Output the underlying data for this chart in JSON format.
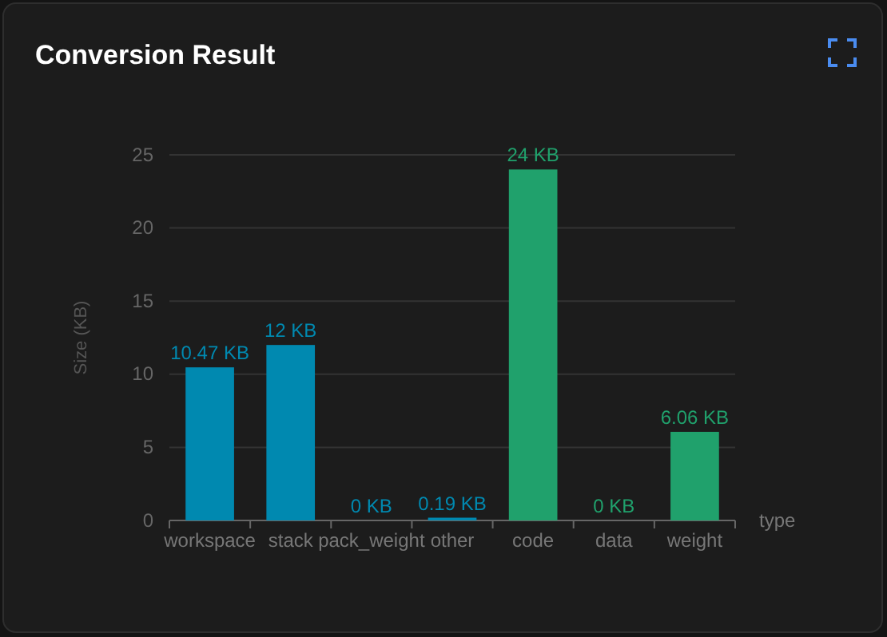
{
  "chart_data": {
    "type": "bar",
    "title": "Conversion Result",
    "xlabel": "type",
    "ylabel": "Size (KB)",
    "categories": [
      "workspace",
      "stack",
      "pack_weight",
      "other",
      "code",
      "data",
      "weight"
    ],
    "values": [
      10.47,
      12,
      0,
      0.19,
      24,
      0,
      6.06
    ],
    "colors": [
      "#0089b0",
      "#0089b0",
      "#0089b0",
      "#0089b0",
      "#20a16c",
      "#20a16c",
      "#20a16c"
    ],
    "value_labels": [
      "10.47 KB",
      "12 KB",
      "0 KB",
      "0.19 KB",
      "24 KB",
      "0 KB",
      "6.06 KB"
    ],
    "ylim": [
      0,
      25
    ],
    "yticks": [
      0,
      5,
      10,
      15,
      20,
      25
    ],
    "grid": "y"
  }
}
